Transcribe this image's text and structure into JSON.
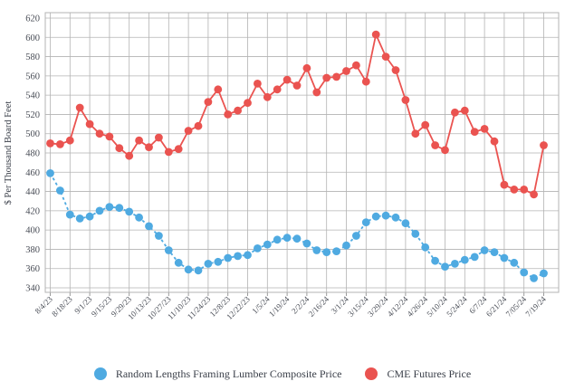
{
  "chart_data": {
    "type": "line",
    "title": "",
    "xlabel": "",
    "ylabel": "$ Per Thousand Board Feet",
    "ylim": [
      340,
      620
    ],
    "ytick_step": 20,
    "grid": true,
    "legend_position": "bottom",
    "points_per_x_tick": 2,
    "x_tick_labels": [
      "8/4/23",
      "8/18/23",
      "9/1/23",
      "9/15/23",
      "9/29/23",
      "10/13/23",
      "10/27/23",
      "11/10/23",
      "11/24/23",
      "12/8/23",
      "12/22/23",
      "1/5/24",
      "1/19/24",
      "2/2/24",
      "2/16/24",
      "3/1/24",
      "3/15/24",
      "3/29/24",
      "4/12/24",
      "4/26/24",
      "5/10/24",
      "5/24/24",
      "6/7/24",
      "6/21/24",
      "7/05/24",
      "7/19/24"
    ],
    "series": [
      {
        "name": "Random Lengths Framing Lumber Composite Price",
        "color": "#4faae1",
        "line_style": "dashed",
        "values": [
          459,
          441,
          416,
          412,
          414,
          420,
          424,
          423,
          419,
          413,
          404,
          394,
          379,
          366,
          359,
          358,
          365,
          367,
          371,
          373,
          374,
          381,
          385,
          390,
          392,
          391,
          386,
          379,
          377,
          378,
          384,
          394,
          408,
          414,
          415,
          413,
          407,
          396,
          382,
          368,
          362,
          365,
          369,
          372,
          379,
          377,
          371,
          366,
          356,
          350,
          355
        ]
      },
      {
        "name": "CME Futures Price",
        "color": "#ea5350",
        "line_style": "solid",
        "values": [
          490,
          489,
          493,
          527,
          510,
          500,
          497,
          485,
          477,
          493,
          486,
          496,
          481,
          484,
          503,
          508,
          533,
          546,
          520,
          524,
          532,
          552,
          538,
          546,
          556,
          550,
          568,
          543,
          558,
          559,
          565,
          571,
          554,
          603,
          580,
          566,
          535,
          500,
          509,
          488,
          483,
          522,
          524,
          502,
          505,
          492,
          447,
          442,
          442,
          437,
          488
        ]
      }
    ],
    "grid_color": "#b3b3b3",
    "text_color": "#4a4e57"
  },
  "legend": {
    "item1_label": "Random Lengths Framing Lumber Composite Price",
    "item2_label": "CME Futures Price"
  }
}
